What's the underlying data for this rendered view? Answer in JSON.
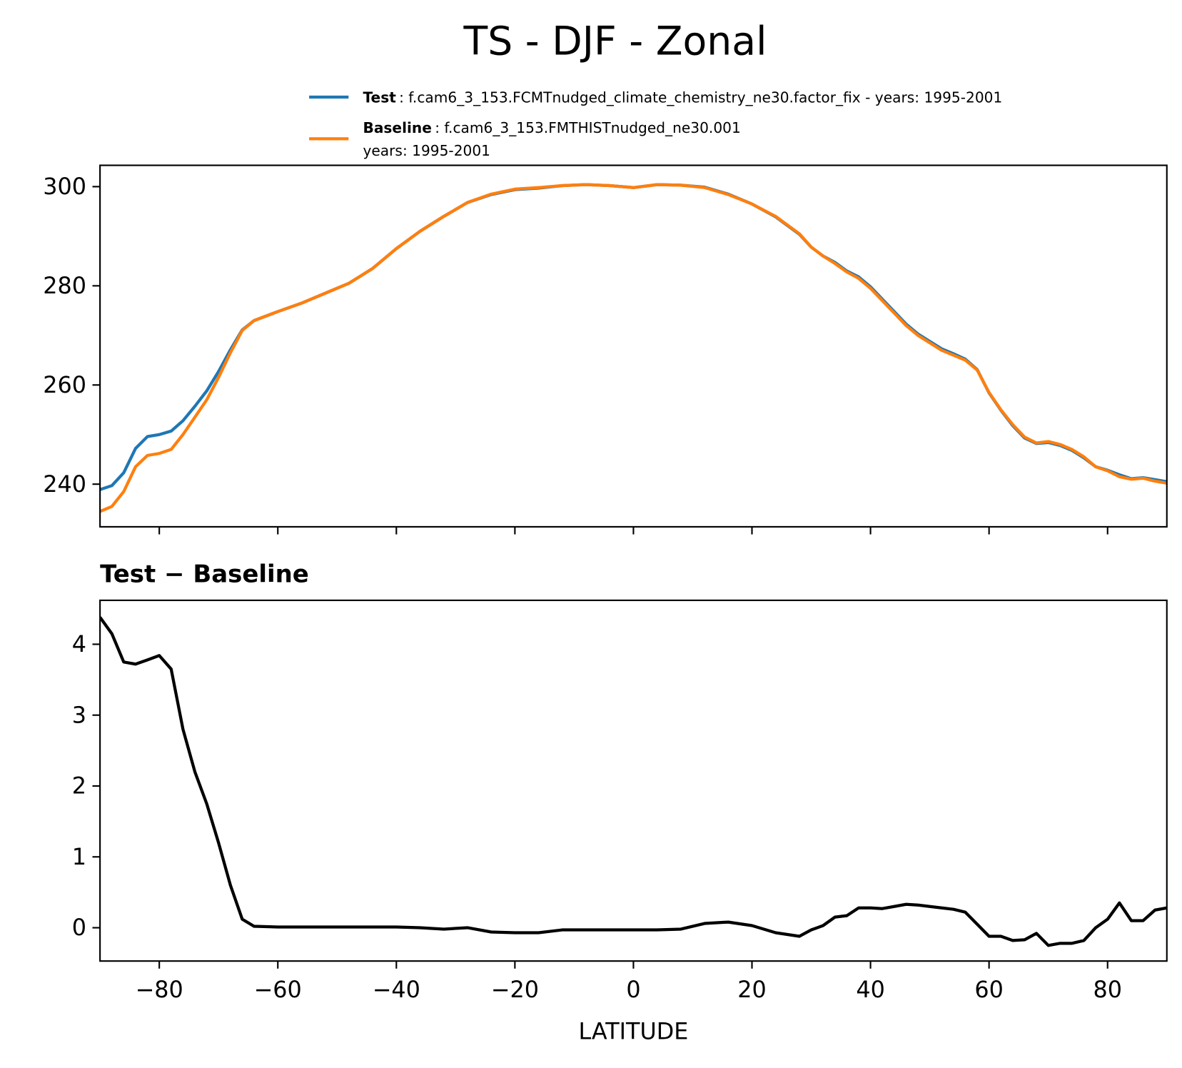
{
  "title": "TS - DJF - Zonal",
  "chart_data": [
    {
      "type": "line",
      "x": [
        -90,
        -88,
        -86,
        -84,
        -82,
        -80,
        -78,
        -76,
        -74,
        -72,
        -70,
        -68,
        -66,
        -64,
        -60,
        -56,
        -52,
        -48,
        -44,
        -40,
        -36,
        -32,
        -28,
        -24,
        -20,
        -16,
        -12,
        -8,
        -4,
        0,
        4,
        8,
        12,
        16,
        20,
        24,
        28,
        30,
        32,
        34,
        36,
        38,
        40,
        42,
        44,
        46,
        48,
        50,
        52,
        54,
        56,
        58,
        60,
        62,
        64,
        66,
        68,
        70,
        72,
        74,
        76,
        78,
        80,
        82,
        84,
        86,
        88,
        90
      ],
      "series": [
        {
          "name": "Test",
          "label": ": f.cam6_3_153.FCMTnudged_climate_chemistry_ne30.factor_fix - years: 1995-2001",
          "color": "#1f77b4",
          "values": [
            238.9,
            239.7,
            242.3,
            247.2,
            249.6,
            250.0,
            250.7,
            252.8,
            255.7,
            258.8,
            262.7,
            267.1,
            271.1,
            273.0,
            274.8,
            276.5,
            278.5,
            280.5,
            283.5,
            287.5,
            291.0,
            294.0,
            296.8,
            298.4,
            299.4,
            299.7,
            300.2,
            300.4,
            300.2,
            299.8,
            300.4,
            300.3,
            299.9,
            298.5,
            296.5,
            293.9,
            290.4,
            287.8,
            286.0,
            284.7,
            283.0,
            281.8,
            279.8,
            277.3,
            274.8,
            272.3,
            270.3,
            268.8,
            267.3,
            266.3,
            265.2,
            263.1,
            258.4,
            254.9,
            251.8,
            249.3,
            248.2,
            248.4,
            247.8,
            246.8,
            245.3,
            243.5,
            242.8,
            241.9,
            241.1,
            241.3,
            240.9,
            240.5
          ]
        },
        {
          "name": "Baseline",
          "label": [
            ": f.cam6_3_153.FMTHISTnudged_ne30.001",
            "years: 1995-2001"
          ],
          "color": "#ff7f0e",
          "values": [
            234.5,
            235.5,
            238.5,
            243.5,
            245.8,
            246.2,
            247,
            250,
            253.5,
            257,
            261.5,
            266.5,
            271,
            273,
            274.8,
            276.5,
            278.5,
            280.5,
            283.5,
            287.5,
            291,
            294,
            296.8,
            298.5,
            299.5,
            299.8,
            300.2,
            300.4,
            300.2,
            299.8,
            300.4,
            300.3,
            299.8,
            298.4,
            296.5,
            294,
            290.5,
            287.8,
            286,
            284.5,
            282.8,
            281.5,
            279.5,
            277,
            274.5,
            272,
            270,
            268.5,
            267,
            266,
            265,
            263,
            258.5,
            255,
            252,
            249.5,
            248.3,
            248.6,
            248,
            247,
            245.5,
            243.5,
            242.7,
            241.5,
            241,
            241.2,
            240.6,
            240.2
          ]
        }
      ],
      "xlim": [
        -90,
        90
      ],
      "ylim": [
        231.4,
        304.3
      ],
      "xticks": [
        -80,
        -60,
        -40,
        -20,
        0,
        20,
        40,
        60,
        80
      ],
      "yticks": [
        240,
        260,
        280,
        300
      ]
    },
    {
      "type": "line",
      "title": "Test − Baseline",
      "xlabel": "LATITUDE",
      "x": [
        -90,
        -88,
        -86,
        -84,
        -82,
        -80,
        -78,
        -76,
        -74,
        -72,
        -70,
        -68,
        -66,
        -64,
        -60,
        -56,
        -52,
        -48,
        -44,
        -40,
        -36,
        -32,
        -28,
        -24,
        -20,
        -16,
        -12,
        -8,
        -4,
        0,
        4,
        8,
        12,
        16,
        20,
        24,
        28,
        30,
        32,
        34,
        36,
        38,
        40,
        42,
        44,
        46,
        48,
        50,
        52,
        54,
        56,
        58,
        60,
        62,
        64,
        66,
        68,
        70,
        72,
        74,
        76,
        78,
        80,
        82,
        84,
        86,
        88,
        90
      ],
      "series": [
        {
          "color": "#000000",
          "values": [
            4.38,
            4.15,
            3.75,
            3.72,
            3.78,
            3.84,
            3.65,
            2.8,
            2.2,
            1.75,
            1.2,
            0.6,
            0.12,
            0.02,
            0.01,
            0.01,
            0.01,
            0.01,
            0.01,
            0.01,
            0.0,
            -0.02,
            0.0,
            -0.06,
            -0.07,
            -0.07,
            -0.03,
            -0.03,
            -0.03,
            -0.03,
            -0.03,
            -0.02,
            0.06,
            0.08,
            0.03,
            -0.07,
            -0.12,
            -0.03,
            0.03,
            0.15,
            0.17,
            0.28,
            0.28,
            0.27,
            0.3,
            0.33,
            0.32,
            0.3,
            0.28,
            0.26,
            0.22,
            0.05,
            -0.12,
            -0.12,
            -0.18,
            -0.17,
            -0.08,
            -0.25,
            -0.22,
            -0.22,
            -0.18,
            0.0,
            0.12,
            0.35,
            0.1,
            0.1,
            0.25,
            0.28
          ]
        }
      ],
      "xlim": [
        -90,
        90
      ],
      "ylim": [
        -0.47,
        4.62
      ],
      "xticks": [
        {
          "value": -80,
          "label": "−80"
        },
        {
          "value": -60,
          "label": "−60"
        },
        {
          "value": -40,
          "label": "−40"
        },
        {
          "value": -20,
          "label": "−20"
        },
        0,
        20,
        40,
        60,
        80
      ],
      "yticks": [
        0,
        1,
        2,
        3,
        4
      ]
    }
  ]
}
